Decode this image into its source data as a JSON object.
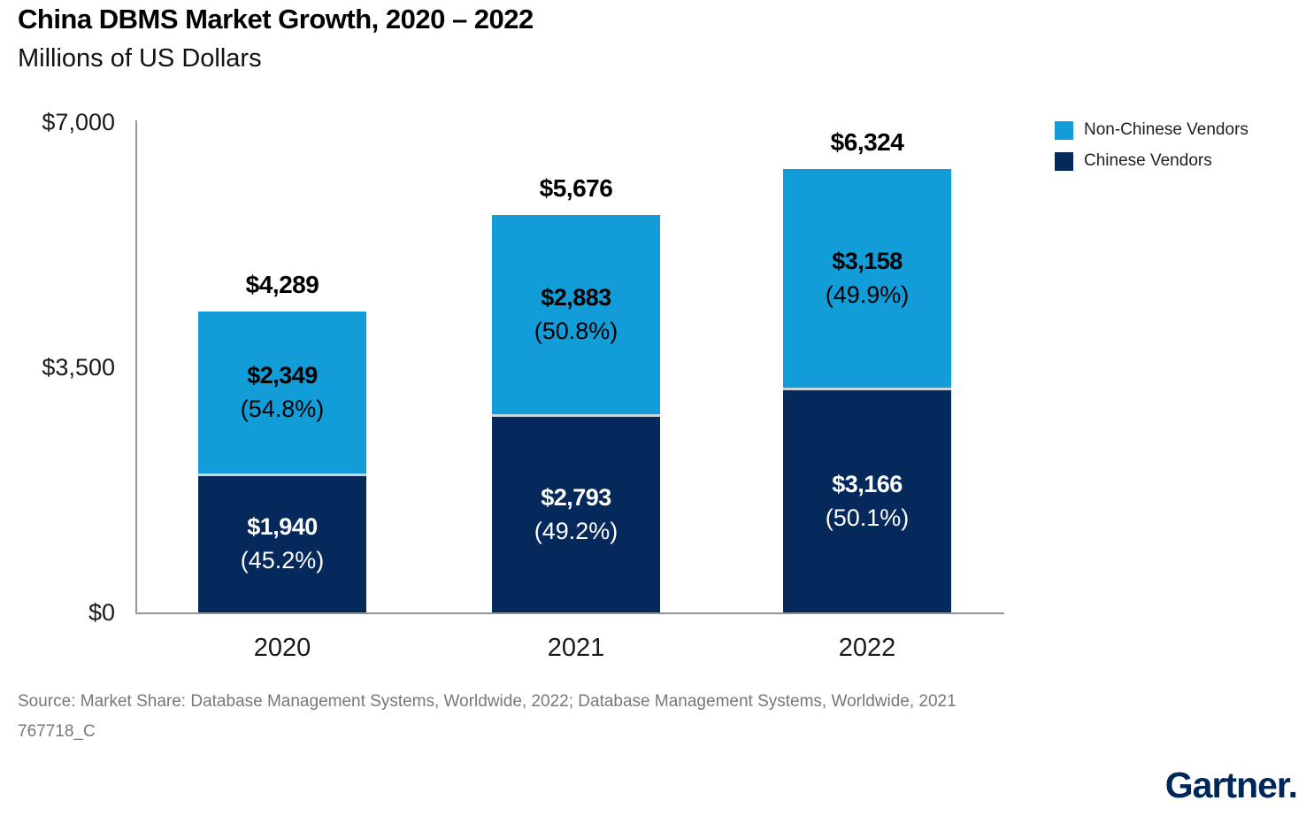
{
  "header": {
    "title": "China DBMS Market Growth, 2020 – 2022",
    "subtitle": "Millions of US Dollars"
  },
  "y_axis": {
    "tick_top": "$7,000",
    "tick_mid": "$3,500",
    "tick_zero": "$0"
  },
  "legend": [
    {
      "label": "Non-Chinese Vendors",
      "color": "#129cd8"
    },
    {
      "label": "Chinese Vendors",
      "color": "#04295a"
    }
  ],
  "chart_data": {
    "type": "bar",
    "stacked": true,
    "title": "China DBMS Market Growth, 2020 – 2022",
    "ylabel": "Millions of US Dollars",
    "categories": [
      "2020",
      "2021",
      "2022"
    ],
    "series": [
      {
        "name": "Chinese Vendors",
        "color": "#04295a",
        "values": [
          1940,
          2793,
          3166
        ],
        "percents": [
          45.2,
          49.2,
          50.1
        ]
      },
      {
        "name": "Non-Chinese Vendors",
        "color": "#129cd8",
        "values": [
          2349,
          2883,
          3158
        ],
        "percents": [
          54.8,
          50.8,
          49.9
        ]
      }
    ],
    "totals": [
      4289,
      5676,
      6324
    ],
    "ylim": [
      0,
      7000
    ],
    "yticks": [
      0,
      3500,
      7000
    ],
    "grid": false,
    "legend_position": "top-right"
  },
  "bars": [
    {
      "year": "2020",
      "total_label": "$4,289",
      "top": {
        "value": "$2,349",
        "pct": "(54.8%)"
      },
      "bottom": {
        "value": "$1,940",
        "pct": "(45.2%)"
      }
    },
    {
      "year": "2021",
      "total_label": "$5,676",
      "top": {
        "value": "$2,883",
        "pct": "(50.8%)"
      },
      "bottom": {
        "value": "$2,793",
        "pct": "(49.2%)"
      }
    },
    {
      "year": "2022",
      "total_label": "$6,324",
      "top": {
        "value": "$3,158",
        "pct": "(49.9%)"
      },
      "bottom": {
        "value": "$3,166",
        "pct": "(50.1%)"
      }
    }
  ],
  "footer": {
    "source": "Source: Market Share: Database Management Systems, Worldwide, 2022; Database Management Systems, Worldwide, 2021",
    "doc_id": "767718_C",
    "brand": "Gartner."
  }
}
